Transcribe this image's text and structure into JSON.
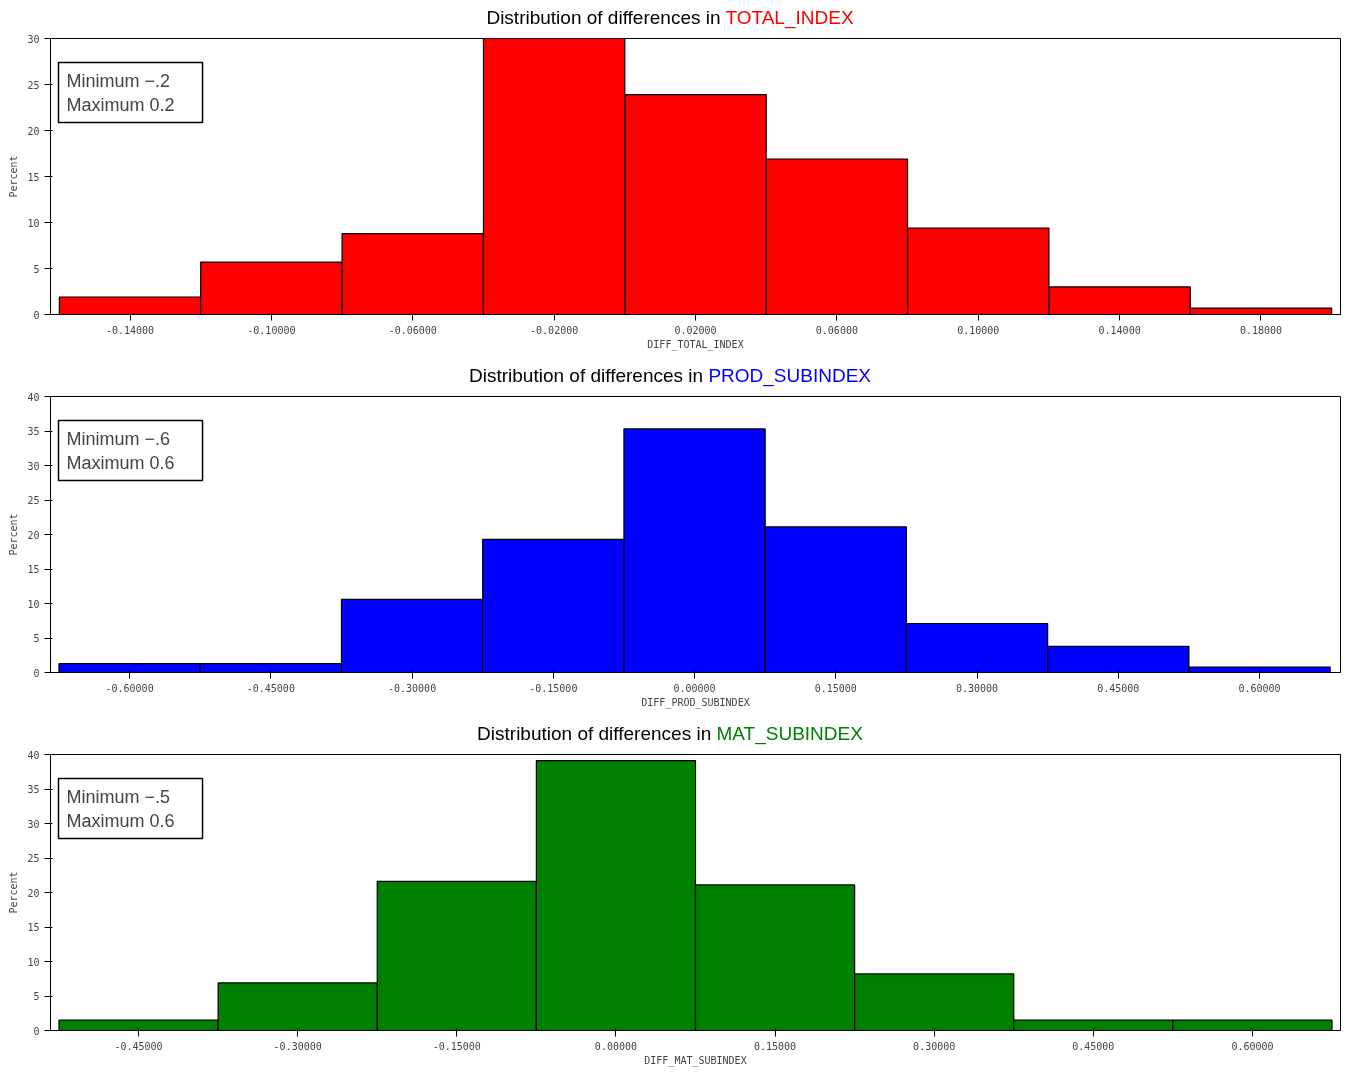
{
  "chart_data": [
    {
      "type": "histogram",
      "title": "Distribution of differences in TOTAL_INDEX",
      "xlabel": "DIFF_TOTAL_INDEX",
      "ylabel": "Percent",
      "color": "#ff0000",
      "bins": [
        -0.16,
        -0.12,
        -0.08,
        -0.04,
        0.0,
        0.04,
        0.08,
        0.12,
        0.16,
        0.2
      ],
      "values": [
        1.9,
        5.7,
        8.8,
        30,
        23.9,
        16.9,
        9.4,
        3.0,
        0.7
      ],
      "xlim": [
        -0.1625,
        0.2025
      ],
      "ylim": [
        0,
        30
      ],
      "xticks": [
        {
          "value": -0.14,
          "label": "-0.14000"
        },
        {
          "value": -0.1,
          "label": "-0.10000"
        },
        {
          "value": -0.06,
          "label": "-0.06000"
        },
        {
          "value": -0.02,
          "label": "-0.02000"
        },
        {
          "value": 0.02,
          "label": "0.02000"
        },
        {
          "value": 0.06,
          "label": "0.06000"
        },
        {
          "value": 0.1,
          "label": "0.10000"
        },
        {
          "value": 0.14,
          "label": "0.14000"
        },
        {
          "value": 0.18,
          "label": "0.18000"
        }
      ],
      "yticks": [
        0,
        5,
        10,
        15,
        20,
        25,
        30
      ],
      "annotations": [
        "Minimum     −.2",
        "Maximum     0.2"
      ],
      "grid": false
    },
    {
      "type": "histogram",
      "title": "Distribution of differences in PROD_SUBINDEX",
      "xlabel": "DIFF_PROD_SUBINDEX",
      "ylabel": "Percent",
      "color": "#0000ff",
      "bins": [
        -0.675,
        -0.525,
        -0.375,
        -0.225,
        -0.075,
        0.075,
        0.225,
        0.375,
        0.525,
        0.675
      ],
      "values": [
        1.3,
        1.3,
        10.6,
        19.3,
        35.3,
        21.1,
        7.1,
        3.8,
        0.8
      ],
      "xlim": [
        -0.684,
        0.686
      ],
      "ylim": [
        0,
        40
      ],
      "xticks": [
        {
          "value": -0.6,
          "label": "-0.60000"
        },
        {
          "value": -0.45,
          "label": "-0.45000"
        },
        {
          "value": -0.3,
          "label": "-0.30000"
        },
        {
          "value": -0.15,
          "label": "-0.15000"
        },
        {
          "value": 0.0,
          "label": "0.00000"
        },
        {
          "value": 0.15,
          "label": "0.15000"
        },
        {
          "value": 0.3,
          "label": "0.30000"
        },
        {
          "value": 0.45,
          "label": "0.45000"
        },
        {
          "value": 0.6,
          "label": "0.60000"
        }
      ],
      "yticks": [
        0,
        5,
        10,
        15,
        20,
        25,
        30,
        35,
        40
      ],
      "annotations": [
        "Minimum     −.6",
        "Maximum     0.6"
      ],
      "grid": false
    },
    {
      "type": "histogram",
      "title": "Distribution of differences in MAT_SUBINDEX",
      "xlabel": "DIFF_MAT_SUBINDEX",
      "ylabel": "Percent",
      "color": "#008000",
      "bins": [
        -0.525,
        -0.375,
        -0.225,
        -0.075,
        0.075,
        0.225,
        0.375,
        0.525,
        0.675
      ],
      "values": [
        1.5,
        6.9,
        21.6,
        39.1,
        21.1,
        8.2,
        1.5,
        1.5
      ],
      "xlim": [
        -0.533,
        0.683
      ],
      "ylim": [
        0,
        40
      ],
      "xticks": [
        {
          "value": -0.45,
          "label": "-0.45000"
        },
        {
          "value": -0.3,
          "label": "-0.30000"
        },
        {
          "value": -0.15,
          "label": "-0.15000"
        },
        {
          "value": 0.0,
          "label": "0.00000"
        },
        {
          "value": 0.15,
          "label": "0.15000"
        },
        {
          "value": 0.3,
          "label": "0.30000"
        },
        {
          "value": 0.45,
          "label": "0.45000"
        },
        {
          "value": 0.6,
          "label": "0.60000"
        }
      ],
      "yticks": [
        0,
        5,
        10,
        15,
        20,
        25,
        30,
        35,
        40
      ],
      "annotations": [
        "Minimum     −.5",
        "Maximum     0.6"
      ],
      "grid": false
    }
  ]
}
